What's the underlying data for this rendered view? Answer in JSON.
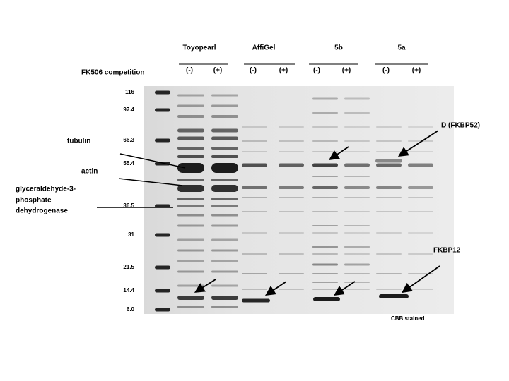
{
  "header": {
    "lanes": [
      "Toyopearl",
      "AffiGel",
      "5b",
      "5a"
    ],
    "competition_label": "FK506 competition",
    "minus": "(-)",
    "plus": "(+)"
  },
  "markers": [
    "116",
    "97.4",
    "66.3",
    "55.4",
    "36.5",
    "31",
    "21.5",
    "14.4",
    "6.0"
  ],
  "labels": {
    "tubulin": "tubulin",
    "actin": "actin",
    "gapdh": [
      "glyceraldehyde-3-",
      "phosphate",
      "dehydrogenase"
    ],
    "fkbp52": "D (FKBP52)",
    "fkbp12": "FKBP12",
    "stain": "CBB stained"
  }
}
